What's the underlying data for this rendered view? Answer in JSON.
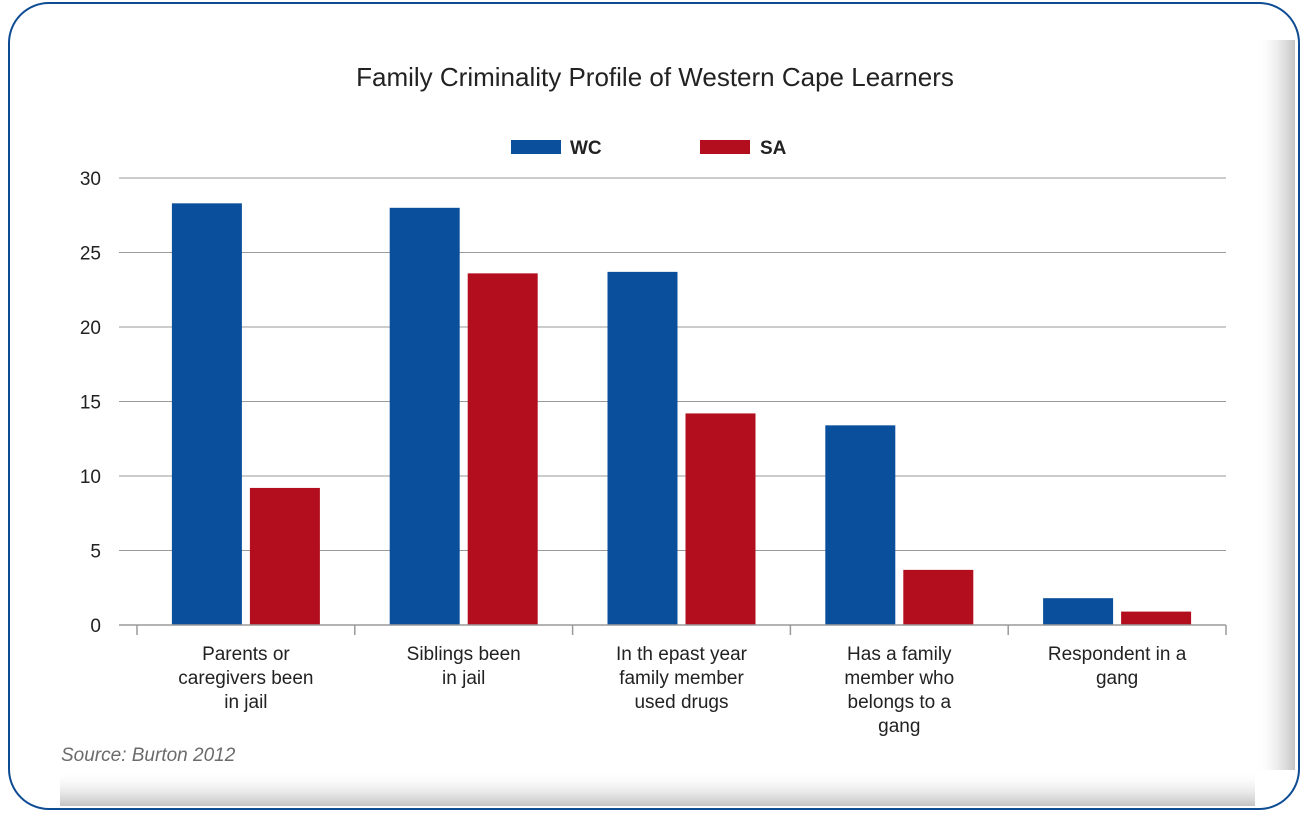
{
  "colors": {
    "wc": "#0a4f9b",
    "sa": "#b30e1e",
    "frame_border": "#0d4b93",
    "grid": "#9a9a9a",
    "text": "#222222"
  },
  "source_text": "Source: Burton 2012",
  "chart_data": {
    "type": "bar",
    "title": "Family Criminality Profile of Western Cape Learners",
    "xlabel": "",
    "ylabel": "",
    "ylim": [
      0,
      30
    ],
    "yticks": [
      0,
      5,
      10,
      15,
      20,
      25,
      30
    ],
    "grid": true,
    "legend_position": "top",
    "categories": [
      [
        "Parents or",
        "caregivers been",
        "in jail"
      ],
      [
        "Siblings been",
        "in jail"
      ],
      [
        "In th epast year",
        "family member",
        "used drugs"
      ],
      [
        "Has a family",
        "member who",
        "belongs to a",
        "gang"
      ],
      [
        "Respondent in a",
        "gang"
      ]
    ],
    "series": [
      {
        "name": "WC",
        "values": [
          28.3,
          28.0,
          23.7,
          13.4,
          1.8
        ]
      },
      {
        "name": "SA",
        "values": [
          9.2,
          23.6,
          14.2,
          3.7,
          0.9
        ]
      }
    ]
  }
}
